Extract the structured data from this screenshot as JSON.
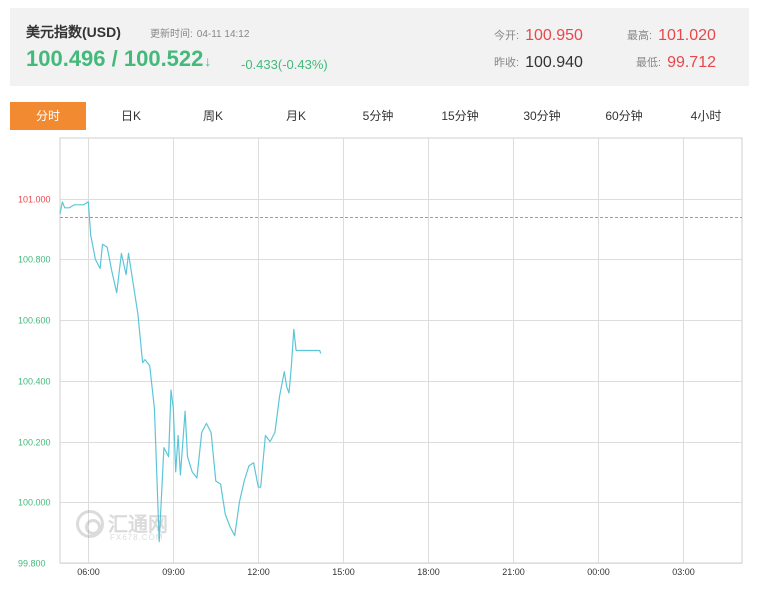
{
  "header": {
    "title": "美元指数(USD)",
    "update_label": "更新时间:",
    "update_time": "04-11 14:12",
    "bid_ask": "100.496 / 100.522",
    "arrow": "↓",
    "change": "-0.433(-0.43%)",
    "open_label": "今开:",
    "open_value": "100.950",
    "high_label": "最高:",
    "high_value": "101.020",
    "prev_close_label": "昨收:",
    "prev_close_value": "100.940",
    "low_label": "最低:",
    "low_value": "99.712"
  },
  "tabs": [
    {
      "label": "分时",
      "active": true
    },
    {
      "label": "日K"
    },
    {
      "label": "周K"
    },
    {
      "label": "月K"
    },
    {
      "label": "5分钟"
    },
    {
      "label": "15分钟"
    },
    {
      "label": "30分钟"
    },
    {
      "label": "60分钟"
    },
    {
      "label": "4小时"
    }
  ],
  "colors": {
    "up": "#e8474c",
    "down": "#43b97a",
    "line": "#5cc6d8",
    "active_tab": "#f28a32",
    "grid": "#dddddd"
  },
  "watermark": {
    "text": "汇通网",
    "sub": "FX678.COM"
  },
  "chart_data": {
    "type": "line",
    "title": "",
    "xlabel": "",
    "ylabel": "",
    "ylim": [
      99.8,
      101.2
    ],
    "x_ticks": [
      "06:00",
      "09:00",
      "12:00",
      "15:00",
      "18:00",
      "21:00",
      "00:00",
      "03:00"
    ],
    "y_ticks": [
      {
        "label": "101.000",
        "value": 101.0,
        "color": "#e8474c"
      },
      {
        "label": "100.800",
        "value": 100.8,
        "color": "#43b97a"
      },
      {
        "label": "100.600",
        "value": 100.6,
        "color": "#43b97a"
      },
      {
        "label": "100.400",
        "value": 100.4,
        "color": "#43b97a"
      },
      {
        "label": "100.200",
        "value": 100.2,
        "color": "#43b97a"
      },
      {
        "label": "100.000",
        "value": 100.0,
        "color": "#43b97a"
      },
      {
        "label": "99.800",
        "value": 99.8,
        "color": "#43b97a"
      }
    ],
    "reference_line": {
      "label": "昨收",
      "value": 100.94,
      "style": "dashed",
      "color": "#f28a32"
    },
    "grid": true,
    "series": [
      {
        "x": [
          "05:00",
          "05:05",
          "05:10",
          "05:20",
          "05:30",
          "05:40",
          "05:50",
          "06:00",
          "06:05",
          "06:15",
          "06:25",
          "06:30",
          "06:40",
          "06:50",
          "07:00",
          "07:10",
          "07:20",
          "07:25",
          "07:35",
          "07:45",
          "07:55",
          "08:00",
          "08:10",
          "08:20",
          "08:30",
          "08:40",
          "08:50",
          "08:55",
          "09:00",
          "09:05",
          "09:10",
          "09:15",
          "09:25",
          "09:30",
          "09:40",
          "09:50",
          "10:00",
          "10:10",
          "10:20",
          "10:30",
          "10:40",
          "10:50",
          "11:00",
          "11:10",
          "11:20",
          "11:30",
          "11:40",
          "11:50",
          "12:00",
          "12:05",
          "12:15",
          "12:25",
          "12:35",
          "12:45",
          "12:55",
          "13:00",
          "13:05",
          "13:10",
          "13:15",
          "13:20",
          "13:30",
          "13:35",
          "13:40",
          "13:45",
          "13:50",
          "14:00",
          "14:05",
          "14:10",
          "14:12"
        ],
        "y": [
          100.95,
          100.99,
          100.97,
          100.97,
          100.98,
          100.98,
          100.98,
          100.99,
          100.88,
          100.8,
          100.77,
          100.85,
          100.84,
          100.76,
          100.69,
          100.82,
          100.75,
          100.82,
          100.72,
          100.62,
          100.46,
          100.47,
          100.45,
          100.31,
          99.87,
          100.18,
          100.15,
          100.37,
          100.31,
          100.1,
          100.22,
          100.09,
          100.3,
          100.15,
          100.1,
          100.08,
          100.23,
          100.26,
          100.23,
          100.07,
          100.06,
          99.96,
          99.92,
          99.89,
          100.0,
          100.07,
          100.12,
          100.13,
          100.05,
          100.05,
          100.22,
          100.2,
          100.23,
          100.35,
          100.43,
          100.38,
          100.36,
          100.45,
          100.57,
          100.5,
          100.5,
          100.5,
          100.5,
          100.5,
          100.5,
          100.5,
          100.5,
          100.5,
          100.49
        ]
      }
    ]
  }
}
